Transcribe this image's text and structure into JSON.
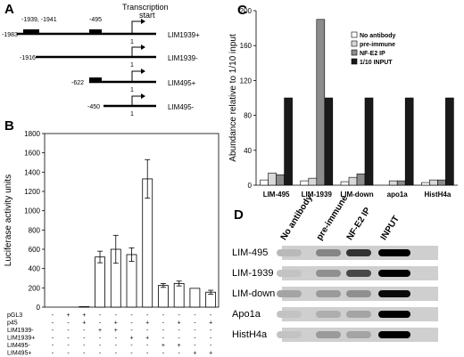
{
  "panels": {
    "a": "A",
    "b": "B",
    "c": "C",
    "d": "D"
  },
  "panel_a": {
    "tss_label_line1": "Transcription",
    "tss_label_line2": "start",
    "constructs": [
      {
        "name": "LIM1939+",
        "start": "-1983",
        "box_labels": [
          "-1939, -1941",
          "-495"
        ],
        "tss": "1"
      },
      {
        "name": "LIM1939-",
        "start": "-1916",
        "box_labels": [],
        "tss": "1"
      },
      {
        "name": "LIM495+",
        "start": "-622",
        "box_labels": [],
        "tss": "1"
      },
      {
        "name": "LIM495-",
        "start": "-450",
        "box_labels": [],
        "tss": "1"
      }
    ]
  },
  "panel_d": {
    "columns": [
      "No antibody",
      "pre-immune",
      "NF-E2 IP",
      "INPUT"
    ],
    "rows": [
      "LIM-495",
      "LIM-1939",
      "LIM-down",
      "Apo1a",
      "HistH4a"
    ],
    "band_intensity": [
      [
        0.1,
        0.35,
        0.75,
        1.0
      ],
      [
        0.05,
        0.3,
        0.65,
        1.0
      ],
      [
        0.2,
        0.25,
        0.3,
        0.95
      ],
      [
        0.05,
        0.15,
        0.2,
        1.0
      ],
      [
        0.05,
        0.25,
        0.2,
        1.0
      ]
    ]
  },
  "chart_data": [
    {
      "type": "bar",
      "panel": "B",
      "ylabel": "Luciferase activity units",
      "xlabel": "",
      "ylim": [
        0,
        1800
      ],
      "yticks": [
        0,
        200,
        400,
        600,
        800,
        1000,
        1200,
        1400,
        1600,
        1800
      ],
      "values": [
        0,
        0,
        5,
        520,
        600,
        545,
        1330,
        225,
        245,
        195,
        155
      ],
      "errors": [
        0,
        0,
        0,
        60,
        145,
        70,
        200,
        20,
        25,
        0,
        20
      ],
      "conditions": [
        {
          "label": "pGL3",
          "signs": [
            "-",
            "+",
            "+",
            "-",
            "-",
            "-",
            "-",
            "-",
            "-",
            "-",
            "-"
          ]
        },
        {
          "label": "p45",
          "signs": [
            "-",
            "-",
            "+",
            "-",
            "+",
            "-",
            "+",
            "-",
            "+",
            "-",
            "+"
          ]
        },
        {
          "label": "LIM1939-",
          "signs": [
            "-",
            "-",
            "-",
            "+",
            "+",
            "-",
            "-",
            "-",
            "-",
            "-",
            "-"
          ]
        },
        {
          "label": "LIM1939+",
          "signs": [
            "-",
            "-",
            "-",
            "-",
            "-",
            "+",
            "+",
            "-",
            "-",
            "-",
            "-"
          ]
        },
        {
          "label": "LIM495-",
          "signs": [
            "-",
            "-",
            "-",
            "-",
            "-",
            "-",
            "-",
            "+",
            "+",
            "-",
            "-"
          ]
        },
        {
          "label": "LIM495+",
          "signs": [
            "-",
            "-",
            "-",
            "-",
            "-",
            "-",
            "-",
            "-",
            "-",
            "+",
            "+"
          ]
        }
      ]
    },
    {
      "type": "bar",
      "panel": "C",
      "ylabel": "Abundance relative to 1/10 input",
      "xlabel": "",
      "ylim": [
        0,
        200
      ],
      "yticks": [
        0,
        40,
        80,
        120,
        160,
        200
      ],
      "categories": [
        "LIM-495",
        "LIM-1939",
        "LIM-down",
        "apo1a",
        "HistH4a"
      ],
      "series": [
        {
          "name": "No antibody",
          "color": "#ffffff",
          "values": [
            6,
            5,
            4,
            0,
            3
          ]
        },
        {
          "name": "pre-immune",
          "color": "#d9d9d9",
          "values": [
            14,
            8,
            9,
            5,
            6
          ]
        },
        {
          "name": "NF-E2 IP",
          "color": "#8c8c8c",
          "values": [
            12,
            190,
            13,
            5,
            6
          ]
        },
        {
          "name": "1/10 INPUT",
          "color": "#1a1a1a",
          "values": [
            100,
            100,
            100,
            100,
            100
          ]
        }
      ],
      "legend_position": "top-right"
    }
  ]
}
